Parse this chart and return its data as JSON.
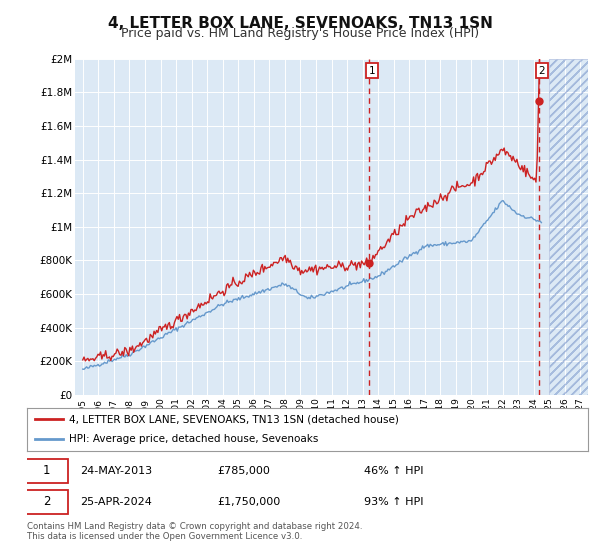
{
  "title": "4, LETTER BOX LANE, SEVENOAKS, TN13 1SN",
  "subtitle": "Price paid vs. HM Land Registry's House Price Index (HPI)",
  "title_fontsize": 11,
  "subtitle_fontsize": 9,
  "background_color": "#ffffff",
  "plot_bg_color": "#dce9f5",
  "grid_color": "#cccccc",
  "ylim": [
    0,
    2000000
  ],
  "yticks": [
    0,
    200000,
    400000,
    600000,
    800000,
    1000000,
    1200000,
    1400000,
    1600000,
    1800000,
    2000000
  ],
  "ytick_labels": [
    "£0",
    "£200K",
    "£400K",
    "£600K",
    "£800K",
    "£1M",
    "£1.2M",
    "£1.4M",
    "£1.6M",
    "£1.8M",
    "£2M"
  ],
  "xlim_start": 1994.5,
  "xlim_end": 2027.5,
  "xticks": [
    1995,
    1996,
    1997,
    1998,
    1999,
    2000,
    2001,
    2002,
    2003,
    2004,
    2005,
    2006,
    2007,
    2008,
    2009,
    2010,
    2011,
    2012,
    2013,
    2014,
    2015,
    2016,
    2017,
    2018,
    2019,
    2020,
    2021,
    2022,
    2023,
    2024,
    2025,
    2026,
    2027
  ],
  "hpi_color": "#6699cc",
  "price_color": "#cc2222",
  "dashed_line_color": "#cc2222",
  "marker1_x": 2013.4,
  "marker1_y": 785000,
  "marker2_x": 2024.33,
  "marker2_y": 1750000,
  "annotation1_label": "1",
  "annotation2_label": "2",
  "legend_label1": "4, LETTER BOX LANE, SEVENOAKS, TN13 1SN (detached house)",
  "legend_label2": "HPI: Average price, detached house, Sevenoaks",
  "sale1_date": "24-MAY-2013",
  "sale1_price": "£785,000",
  "sale1_hpi": "46% ↑ HPI",
  "sale2_date": "25-APR-2024",
  "sale2_price": "£1,750,000",
  "sale2_hpi": "93% ↑ HPI",
  "footnote": "Contains HM Land Registry data © Crown copyright and database right 2024.\nThis data is licensed under the Open Government Licence v3.0.",
  "future_start": 2025.0
}
